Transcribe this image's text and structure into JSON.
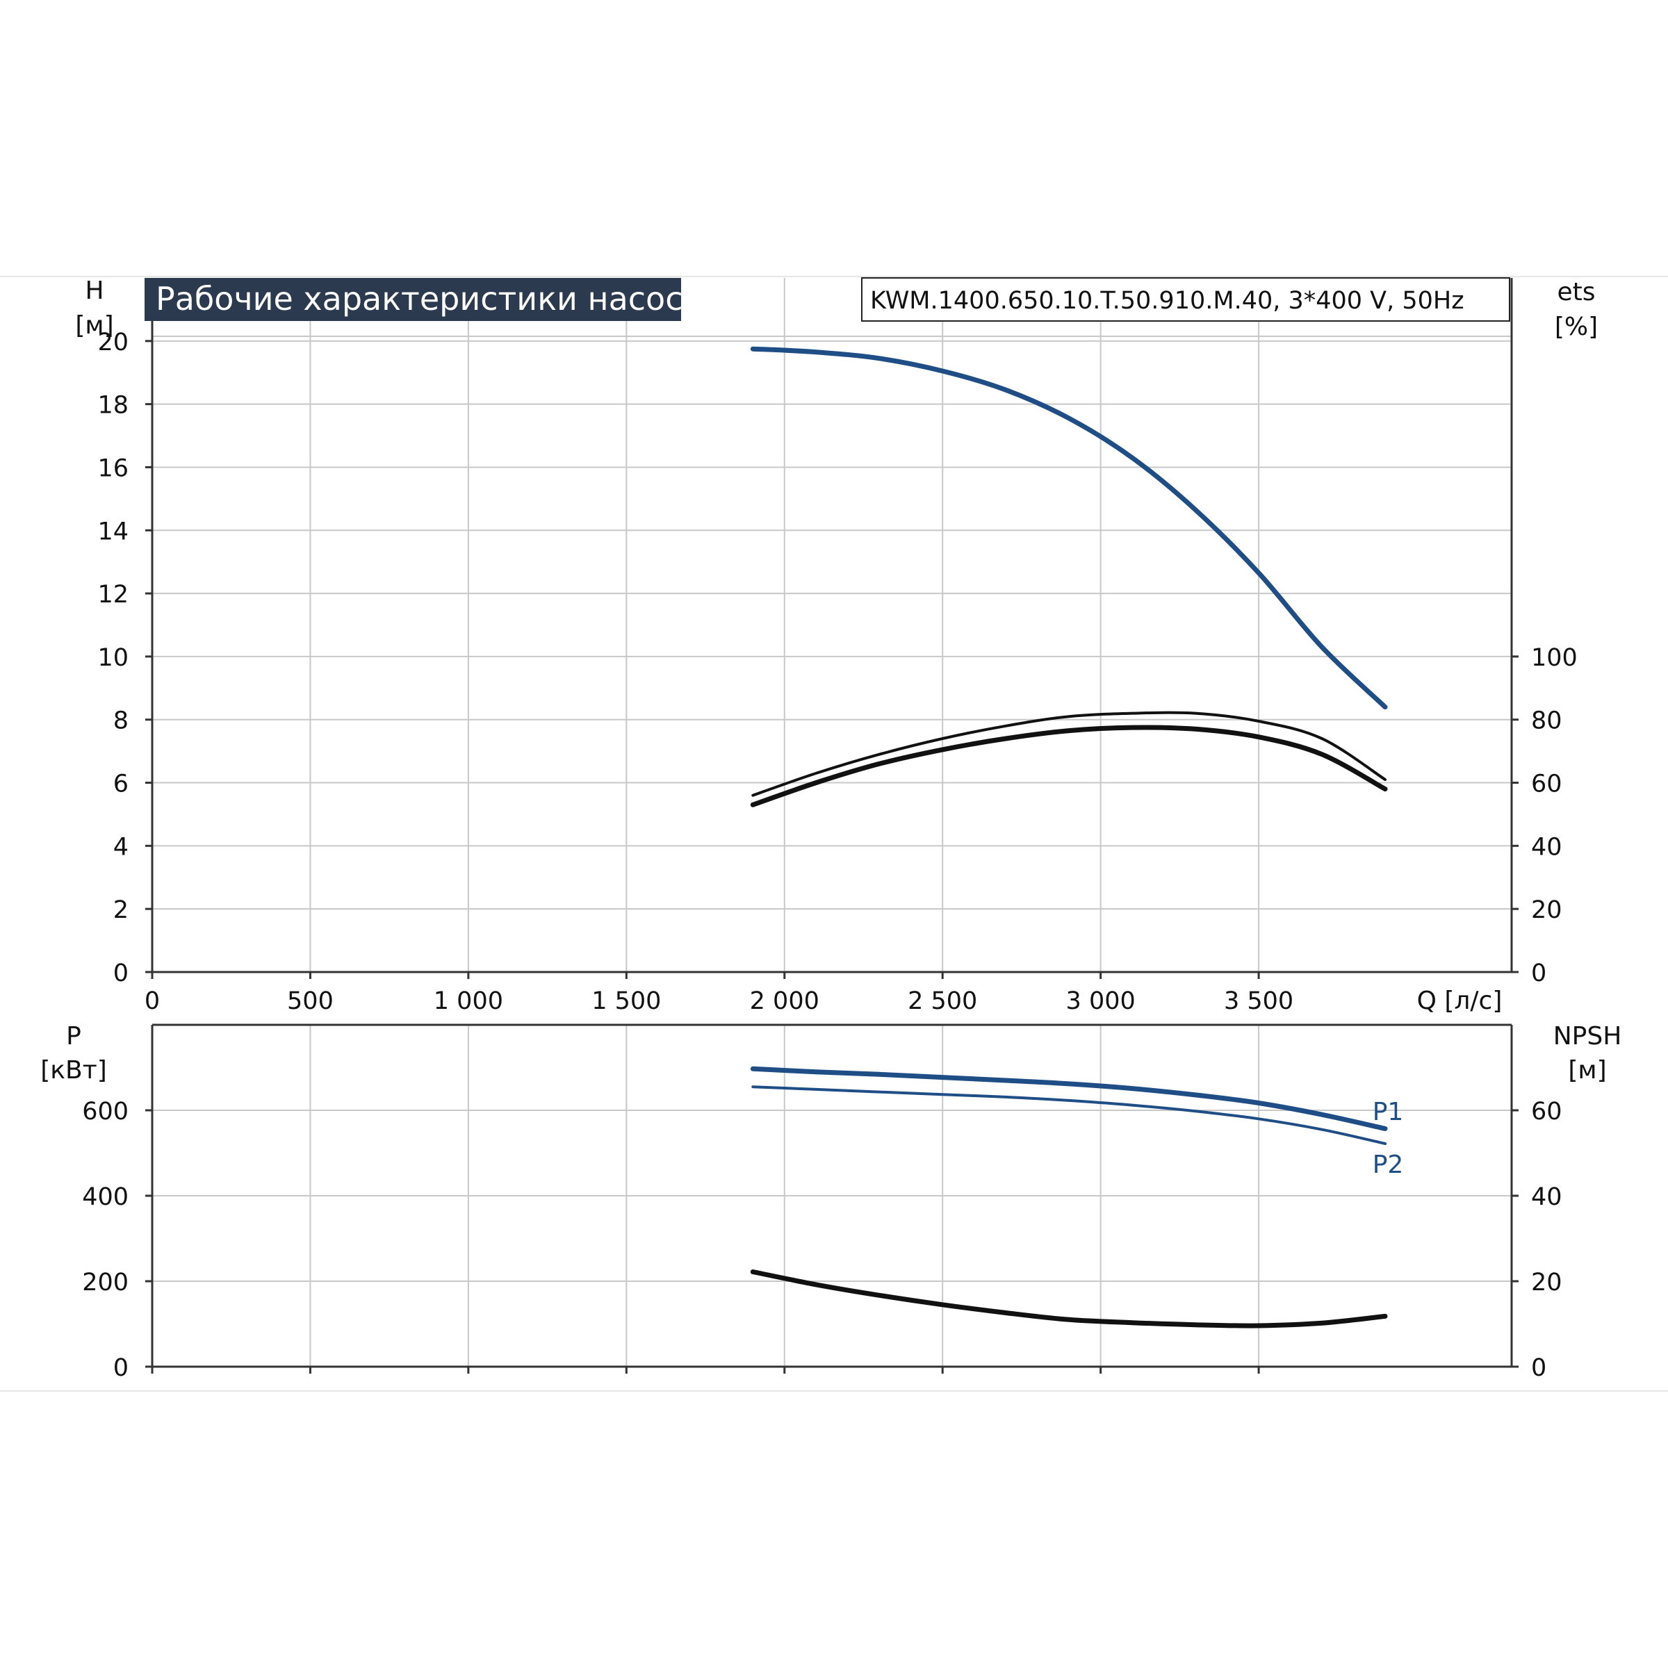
{
  "header": {
    "title": "Рабочие характеристики насоса",
    "model": "KWM.1400.650.10.T.50.910.M.40, 3*400 V, 50Hz"
  },
  "colors": {
    "blue": "#1f4e86",
    "black": "#111111",
    "grid": "#c8c8c8",
    "title_bg": "#2b3a4e",
    "title_fg": "#ffffff"
  },
  "chart_data": [
    {
      "type": "line",
      "title": "Рабочие характеристики насоса",
      "x": {
        "label": "Q [л/с]",
        "range": [
          0,
          4300
        ],
        "ticks": [
          0,
          500,
          1000,
          1500,
          2000,
          2500,
          3000,
          3500
        ],
        "tick_labels": [
          "0",
          "500",
          "1 000",
          "1 500",
          "2 000",
          "2 500",
          "3 000",
          "3 500"
        ]
      },
      "y_left": {
        "label_line1": "H",
        "label_line2": "[м]",
        "range": [
          0,
          22
        ],
        "ticks": [
          0,
          2,
          4,
          6,
          8,
          10,
          12,
          14,
          16,
          18,
          20
        ],
        "tick_labels": [
          "0",
          "2",
          "4",
          "6",
          "8",
          "10",
          "12",
          "14",
          "16",
          "18",
          "20"
        ]
      },
      "y_right": {
        "label_line1": "ets",
        "label_line2": "[%]",
        "range": [
          0,
          220
        ],
        "ticks": [
          0,
          20,
          40,
          60,
          80,
          100
        ],
        "tick_labels": [
          "0",
          "20",
          "40",
          "60",
          "80",
          "100"
        ]
      },
      "grid": true,
      "series": [
        {
          "axis": "left",
          "color": "#1f4e86",
          "width": 7,
          "x": [
            1900,
            2100,
            2300,
            2500,
            2700,
            2900,
            3100,
            3300,
            3500,
            3700,
            3900
          ],
          "y": [
            19.75,
            19.65,
            19.45,
            19.05,
            18.45,
            17.55,
            16.3,
            14.65,
            12.65,
            10.3,
            8.4
          ]
        },
        {
          "axis": "right",
          "color": "#111111",
          "width": 4,
          "x": [
            1900,
            2100,
            2300,
            2500,
            2700,
            2900,
            3100,
            3300,
            3500,
            3700,
            3900
          ],
          "y": [
            56,
            63,
            69,
            74,
            78,
            81,
            82,
            82,
            79.5,
            74,
            61
          ]
        },
        {
          "axis": "right",
          "color": "#111111",
          "width": 7,
          "x": [
            1900,
            2100,
            2300,
            2500,
            2700,
            2900,
            3100,
            3300,
            3500,
            3700,
            3900
          ],
          "y": [
            53,
            60,
            66,
            70.5,
            74,
            76.5,
            77.5,
            77,
            74.5,
            69,
            58
          ]
        }
      ]
    },
    {
      "type": "line",
      "x": {
        "range": [
          0,
          4300
        ],
        "ticks": [
          0,
          500,
          1000,
          1500,
          2000,
          2500,
          3000,
          3500
        ]
      },
      "y_left": {
        "label_line1": "P",
        "label_line2": "[кВт]",
        "range": [
          0,
          800
        ],
        "ticks": [
          0,
          200,
          400,
          600
        ],
        "tick_labels": [
          "0",
          "200",
          "400",
          "600"
        ]
      },
      "y_right": {
        "label_line1": "NPSH",
        "label_line2": "[м]",
        "range": [
          0,
          80
        ],
        "ticks": [
          0,
          20,
          40,
          60
        ],
        "tick_labels": [
          "0",
          "20",
          "40",
          "60"
        ]
      },
      "grid": true,
      "series": [
        {
          "name": "P1",
          "axis": "left",
          "color": "#1f4e86",
          "width": 7,
          "x": [
            1900,
            2100,
            2300,
            2500,
            2700,
            2900,
            3100,
            3300,
            3500,
            3700,
            3900
          ],
          "y": [
            697,
            690,
            684,
            677,
            670,
            662,
            651,
            636,
            617,
            590,
            557
          ]
        },
        {
          "name": "P2",
          "axis": "left",
          "color": "#1f4e86",
          "width": 4,
          "x": [
            1900,
            2100,
            2300,
            2500,
            2700,
            2900,
            3100,
            3300,
            3500,
            3700,
            3900
          ],
          "y": [
            655,
            649,
            643,
            637,
            631,
            623,
            612,
            598,
            580,
            555,
            522
          ]
        },
        {
          "axis": "right",
          "color": "#111111",
          "width": 7,
          "x": [
            1900,
            2100,
            2300,
            2500,
            2700,
            2900,
            3100,
            3300,
            3500,
            3700,
            3900
          ],
          "y": [
            22.2,
            19.2,
            16.7,
            14.5,
            12.6,
            11.0,
            10.3,
            9.8,
            9.6,
            10.2,
            11.8
          ]
        }
      ]
    }
  ]
}
